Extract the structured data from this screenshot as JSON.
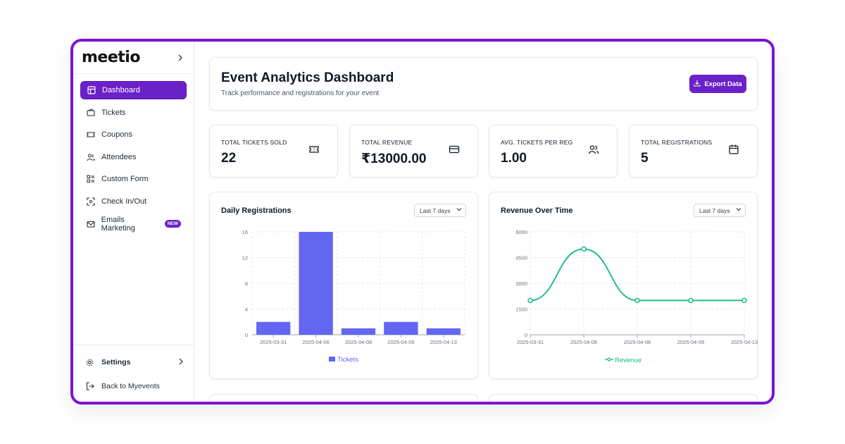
{
  "sidebar": {
    "logo": "meetio",
    "items": [
      {
        "label": "Dashboard",
        "active": true
      },
      {
        "label": "Tickets"
      },
      {
        "label": "Coupons"
      },
      {
        "label": "Attendees"
      },
      {
        "label": "Custom Form"
      },
      {
        "label": "Check In/Out"
      },
      {
        "label": "Emails Marketing",
        "badge": "NEW"
      }
    ],
    "settings_label": "Settings",
    "back_label": "Back to Myevents"
  },
  "header": {
    "title": "Event Analytics Dashboard",
    "subtitle": "Track performance and registrations for your event",
    "export_label": "Export Data"
  },
  "stats": [
    {
      "label": "TOTAL TICKETS SOLD",
      "value": "22",
      "icon": "ticket-icon"
    },
    {
      "label": "TOTAL REVENUE",
      "value": "₹13000.00",
      "icon": "credit-card-icon"
    },
    {
      "label": "AVG. TICKETS PER REG",
      "value": "1.00",
      "icon": "users-icon"
    },
    {
      "label": "TOTAL REGISTRATIONS",
      "value": "5",
      "icon": "calendar-icon"
    }
  ],
  "colors": {
    "accent": "#6b21c8",
    "bar": "#6366f1",
    "line": "#10b981",
    "frame": "#7a12d4"
  },
  "charts": {
    "registrations": {
      "title": "Daily Registrations",
      "range": "Last 7 days",
      "legend": "Tickets"
    },
    "revenue": {
      "title": "Revenue Over Time",
      "range": "Last 7 days",
      "legend": "Revenue"
    }
  },
  "chart_data": [
    {
      "type": "bar",
      "title": "Daily Registrations",
      "categories": [
        "2025-03-31",
        "2025-04-06",
        "2025-04-08",
        "2025-04-09",
        "2025-04-13"
      ],
      "series": [
        {
          "name": "Tickets",
          "values": [
            2,
            16,
            1,
            2,
            1
          ]
        }
      ],
      "yticks": [
        0,
        4,
        8,
        12,
        16
      ],
      "ylim": [
        0,
        16
      ],
      "grid": true,
      "legend": "bottom-center"
    },
    {
      "type": "line",
      "title": "Revenue Over Time",
      "categories": [
        "2025-03-31",
        "2025-04-06",
        "2025-04-08",
        "2025-04-09",
        "2025-04-13"
      ],
      "series": [
        {
          "name": "Revenue",
          "values": [
            2000,
            5000,
            2000,
            2000,
            2000
          ]
        }
      ],
      "yticks": [
        0,
        1500,
        3000,
        4500,
        6000
      ],
      "ylim": [
        0,
        6000
      ],
      "grid": true,
      "legend": "bottom-center"
    }
  ]
}
